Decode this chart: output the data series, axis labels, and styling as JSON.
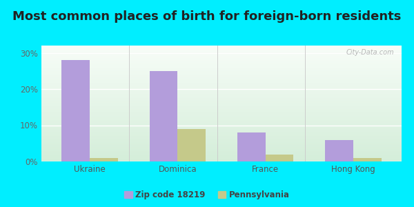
{
  "title": "Most common places of birth for foreign-born residents",
  "categories": [
    "Ukraine",
    "Dominica",
    "France",
    "Hong Kong"
  ],
  "zip_values": [
    28,
    25,
    8,
    6
  ],
  "pa_values": [
    1,
    9,
    2,
    1
  ],
  "zip_color": "#b39ddb",
  "pa_color": "#c5c98a",
  "background_outer": "#00eeff",
  "ylim": [
    0,
    32
  ],
  "yticks": [
    0,
    10,
    20,
    30
  ],
  "ytick_labels": [
    "0%",
    "10%",
    "20%",
    "30%"
  ],
  "legend_zip": "Zip code 18219",
  "legend_pa": "Pennsylvania",
  "bar_width": 0.32,
  "title_fontsize": 13,
  "axis_label_fontsize": 8.5,
  "legend_fontsize": 8.5,
  "watermark": "City-Data.com"
}
